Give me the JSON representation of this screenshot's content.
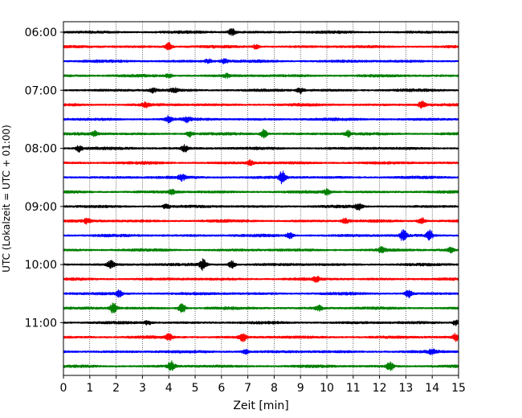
{
  "chart_data": {
    "type": "line",
    "xlabel": "Zeit  [min]",
    "ylabel": "UTC (Lokalzeit = UTC + 01:00)",
    "xlim": [
      0,
      15
    ],
    "x_ticks": [
      "0",
      "1",
      "2",
      "3",
      "4",
      "5",
      "6",
      "7",
      "8",
      "9",
      "10",
      "11",
      "12",
      "13",
      "14",
      "15"
    ],
    "y_ticks": [
      "06:00",
      "07:00",
      "08:00",
      "09:00",
      "10:00",
      "11:00"
    ],
    "grid": "vertical",
    "trace_interval_min": 15,
    "colors": [
      "#000000",
      "#ff0000",
      "#0000ff",
      "#008000"
    ],
    "traces": [
      {
        "start": "06:00",
        "color": "#000000",
        "events": [
          [
            6.4,
            2.0
          ]
        ]
      },
      {
        "start": "06:15",
        "color": "#ff0000",
        "events": [
          [
            4.0,
            2.5
          ],
          [
            7.3,
            1.2
          ]
        ]
      },
      {
        "start": "06:30",
        "color": "#0000ff",
        "events": [
          [
            5.5,
            1.2
          ],
          [
            6.1,
            1.3
          ]
        ]
      },
      {
        "start": "06:45",
        "color": "#008000",
        "events": [
          [
            4.0,
            1.0
          ],
          [
            6.2,
            1.0
          ]
        ]
      },
      {
        "start": "07:00",
        "color": "#000000",
        "events": [
          [
            3.4,
            1.2
          ],
          [
            4.2,
            1.1
          ],
          [
            9.0,
            1.4
          ]
        ]
      },
      {
        "start": "07:15",
        "color": "#ff0000",
        "events": [
          [
            3.1,
            1.2
          ],
          [
            13.6,
            1.8
          ]
        ]
      },
      {
        "start": "07:30",
        "color": "#0000ff",
        "events": [
          [
            4.0,
            1.6
          ],
          [
            4.7,
            1.3
          ]
        ]
      },
      {
        "start": "07:45",
        "color": "#008000",
        "events": [
          [
            1.2,
            1.5
          ],
          [
            4.8,
            1.5
          ],
          [
            7.6,
            2.5
          ],
          [
            10.8,
            1.6
          ]
        ]
      },
      {
        "start": "08:00",
        "color": "#000000",
        "events": [
          [
            0.6,
            1.8
          ],
          [
            4.6,
            1.8
          ]
        ]
      },
      {
        "start": "08:15",
        "color": "#ff0000",
        "events": [
          [
            7.1,
            1.2
          ]
        ]
      },
      {
        "start": "08:30",
        "color": "#0000ff",
        "events": [
          [
            4.5,
            1.5
          ],
          [
            8.3,
            3.2
          ]
        ]
      },
      {
        "start": "08:45",
        "color": "#008000",
        "events": [
          [
            4.1,
            1.2
          ],
          [
            10.0,
            1.5
          ]
        ]
      },
      {
        "start": "09:00",
        "color": "#000000",
        "events": [
          [
            3.9,
            1.3
          ],
          [
            11.2,
            1.8
          ]
        ]
      },
      {
        "start": "09:15",
        "color": "#ff0000",
        "events": [
          [
            0.9,
            1.3
          ],
          [
            10.7,
            1.4
          ],
          [
            13.6,
            1.8
          ]
        ]
      },
      {
        "start": "09:30",
        "color": "#0000ff",
        "events": [
          [
            8.6,
            1.6
          ],
          [
            12.9,
            3.0
          ],
          [
            13.9,
            2.8
          ]
        ]
      },
      {
        "start": "09:45",
        "color": "#008000",
        "events": [
          [
            12.1,
            1.4
          ],
          [
            14.7,
            1.2
          ]
        ]
      },
      {
        "start": "10:00",
        "color": "#000000",
        "events": [
          [
            1.8,
            2.2
          ],
          [
            5.3,
            2.8
          ],
          [
            6.4,
            1.8
          ]
        ]
      },
      {
        "start": "10:15",
        "color": "#ff0000",
        "events": [
          [
            9.6,
            1.2
          ]
        ]
      },
      {
        "start": "10:30",
        "color": "#0000ff",
        "events": [
          [
            2.1,
            1.6
          ],
          [
            13.1,
            2.0
          ]
        ]
      },
      {
        "start": "10:45",
        "color": "#008000",
        "events": [
          [
            1.9,
            2.6
          ],
          [
            4.5,
            2.8
          ],
          [
            9.7,
            1.5
          ]
        ]
      },
      {
        "start": "11:00",
        "color": "#000000",
        "events": [
          [
            3.2,
            1.2
          ],
          [
            14.9,
            1.4
          ]
        ]
      },
      {
        "start": "11:15",
        "color": "#ff0000",
        "events": [
          [
            4.0,
            1.6
          ],
          [
            6.8,
            2.5
          ],
          [
            14.9,
            2.0
          ]
        ]
      },
      {
        "start": "11:30",
        "color": "#0000ff",
        "events": [
          [
            6.9,
            1.2
          ],
          [
            14.0,
            1.2
          ]
        ]
      },
      {
        "start": "11:45",
        "color": "#008000",
        "events": [
          [
            4.1,
            2.6
          ],
          [
            12.4,
            2.3
          ]
        ]
      }
    ]
  }
}
